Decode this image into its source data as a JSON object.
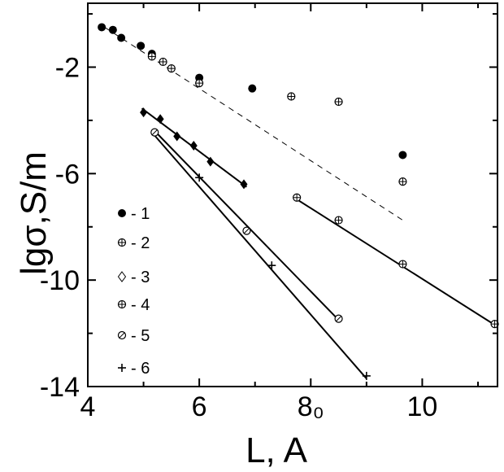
{
  "chart_data": {
    "type": "scatter",
    "title": "",
    "xlabel": "L, A",
    "ylabel": "lgσ,S/m",
    "xlim": [
      4.0,
      11.35
    ],
    "ylim": [
      -14.0,
      0.4
    ],
    "xticks": [
      4,
      6,
      8,
      10
    ],
    "yticks": [
      -2,
      -6,
      -10,
      -14
    ],
    "xtick_labels": [
      "4",
      "6",
      "8₀",
      "10"
    ],
    "ytick_labels": [
      "-2",
      "-6",
      "-10",
      "-14"
    ],
    "grid": false,
    "legend_position": "left-inside",
    "series": [
      {
        "name": "- 1",
        "marker": "filled-circle",
        "points": [
          [
            4.25,
            -0.5
          ],
          [
            4.45,
            -0.6
          ],
          [
            4.6,
            -0.9
          ],
          [
            4.95,
            -1.2
          ],
          [
            5.15,
            -1.5
          ],
          [
            6.0,
            -2.4
          ],
          [
            6.95,
            -2.8
          ],
          [
            9.65,
            -5.3
          ]
        ],
        "fit": null
      },
      {
        "name": "- 2",
        "marker": "circle-plus",
        "points": [
          [
            5.15,
            -1.6
          ],
          [
            5.35,
            -1.8
          ],
          [
            5.5,
            -2.05
          ],
          [
            6.0,
            -2.6
          ],
          [
            7.65,
            -3.1
          ],
          [
            8.5,
            -3.3
          ],
          [
            9.65,
            -6.3
          ]
        ],
        "fit": {
          "style": "dashed",
          "from": [
            4.3,
            -0.5
          ],
          "to": [
            9.65,
            -7.75
          ]
        }
      },
      {
        "name": "- 3",
        "marker": "filled-diamond",
        "points": [
          [
            5.0,
            -3.7
          ],
          [
            5.3,
            -3.95
          ],
          [
            5.6,
            -4.6
          ],
          [
            5.9,
            -4.95
          ],
          [
            6.2,
            -5.55
          ],
          [
            6.8,
            -6.4
          ]
        ],
        "fit": {
          "style": "solid",
          "from": [
            4.97,
            -3.55
          ],
          "to": [
            6.85,
            -6.5
          ]
        }
      },
      {
        "name": "- 4",
        "marker": "circle-plus",
        "points": [
          [
            7.75,
            -6.9
          ],
          [
            8.5,
            -7.75
          ],
          [
            9.65,
            -9.4
          ],
          [
            11.3,
            -11.65
          ]
        ],
        "fit": {
          "style": "solid",
          "from": [
            7.7,
            -6.9
          ],
          "to": [
            11.35,
            -11.75
          ]
        }
      },
      {
        "name": "- 5",
        "marker": "circle-slash",
        "points": [
          [
            5.2,
            -4.45
          ],
          [
            6.85,
            -8.15
          ],
          [
            8.5,
            -11.45
          ]
        ],
        "fit": {
          "style": "solid",
          "from": [
            5.2,
            -4.4
          ],
          "to": [
            8.5,
            -11.5
          ]
        }
      },
      {
        "name": "- 6",
        "marker": "plus",
        "points": [
          [
            6.0,
            -6.15
          ],
          [
            7.3,
            -9.45
          ],
          [
            9.0,
            -13.6
          ]
        ],
        "fit": {
          "style": "solid",
          "from": [
            5.15,
            -4.45
          ],
          "to": [
            9.0,
            -13.7
          ]
        }
      }
    ]
  }
}
